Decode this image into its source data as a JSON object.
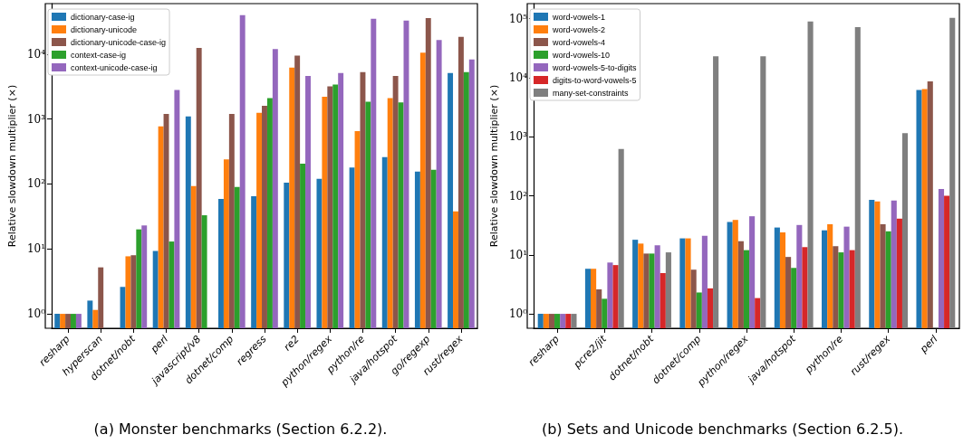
{
  "chart_data": [
    {
      "type": "bar",
      "title": "(a) Monster benchmarks (Section 6.2.2).",
      "ylabel": "Relative slowdown multiplier (×)",
      "log": "y",
      "grid": false,
      "legend": "top left",
      "ylim": [
        0.6,
        60000
      ],
      "yticks": [
        {
          "value": 1,
          "label": "10⁰"
        },
        {
          "value": 10,
          "label": "10¹"
        },
        {
          "value": 100,
          "label": "10²"
        },
        {
          "value": 1000,
          "label": "10³"
        },
        {
          "value": 10000,
          "label": "10⁴"
        }
      ],
      "categories": [
        "resharp",
        "hyperscan",
        "dotnet/nobt",
        "perl",
        "javascript/v8",
        "dotnet/comp",
        "regress",
        "re2",
        "python/regex",
        "python/re",
        "java/hotspot",
        "go/regexp",
        "rust/regex"
      ],
      "series": [
        {
          "name": "dictionary-case-ig",
          "color": "#1f77b4",
          "values": [
            1,
            1.6,
            2.6,
            9.3,
            1100,
            59,
            65,
            105,
            120,
            180,
            260,
            155,
            5100
          ]
        },
        {
          "name": "dictionary-unicode",
          "color": "#ff7f0e",
          "values": [
            1,
            1.15,
            7.7,
            770,
            93,
            240,
            1250,
            6200,
            2200,
            650,
            2100,
            10500,
            38
          ]
        },
        {
          "name": "dictionary-unicode-case-ig",
          "color": "#8c564b",
          "values": [
            1,
            5.2,
            8,
            1200,
            12500,
            1200,
            1600,
            9500,
            3200,
            5300,
            4600,
            36000,
            18500
          ]
        },
        {
          "name": "context-case-ig",
          "color": "#2ca02c",
          "values": [
            1,
            null,
            20,
            13,
            33,
            90,
            2100,
            205,
            3400,
            1850,
            1800,
            165,
            5300
          ]
        },
        {
          "name": "context-unicode-case-ig",
          "color": "#9467bd",
          "values": [
            1,
            null,
            23,
            2800,
            null,
            40000,
            12000,
            4600,
            5100,
            35000,
            33000,
            16500,
            8300
          ]
        }
      ]
    },
    {
      "type": "bar",
      "title": "(b) Sets and Unicode benchmarks (Section 6.2.5).",
      "ylabel": "Relative slowdown multiplier (×)",
      "log": "y",
      "grid": false,
      "legend": "top left",
      "ylim": [
        0.57,
        180000
      ],
      "yticks": [
        {
          "value": 1,
          "label": "10⁰"
        },
        {
          "value": 10,
          "label": "10¹"
        },
        {
          "value": 100,
          "label": "10²"
        },
        {
          "value": 1000,
          "label": "10³"
        },
        {
          "value": 10000,
          "label": "10⁴"
        },
        {
          "value": 100000,
          "label": "10⁵"
        }
      ],
      "categories": [
        "resharp",
        "pcre2/jit",
        "dotnet/nobt",
        "dotnet/comp",
        "python/regex",
        "java/hotspot",
        "python/re",
        "rust/regex",
        "perl"
      ],
      "series": [
        {
          "name": "word-vowels-1",
          "color": "#1f77b4",
          "values": [
            1,
            5.8,
            18,
            19,
            36,
            29,
            26,
            85,
            6200
          ]
        },
        {
          "name": "word-vowels-2",
          "color": "#ff7f0e",
          "values": [
            1,
            5.8,
            15.5,
            19,
            39,
            24,
            33,
            80,
            6400
          ]
        },
        {
          "name": "word-vowels-4",
          "color": "#8c564b",
          "values": [
            1,
            2.6,
            10.5,
            5.6,
            17,
            9.2,
            14,
            33,
            8700
          ]
        },
        {
          "name": "word-vowels-10",
          "color": "#2ca02c",
          "values": [
            1,
            1.8,
            10.5,
            2.3,
            12,
            6,
            11,
            25,
            null
          ]
        },
        {
          "name": "word-vowels-5-to-digits",
          "color": "#9467bd",
          "values": [
            1,
            7.4,
            14.5,
            21,
            45,
            32,
            30,
            83,
            130
          ]
        },
        {
          "name": "digits-to-word-vowels-5",
          "color": "#d62728",
          "values": [
            1,
            6.7,
            4.9,
            2.7,
            1.85,
            13.5,
            12,
            41,
            100
          ]
        },
        {
          "name": "many-set-constraints",
          "color": "#7f7f7f",
          "values": [
            1,
            620,
            11,
            23000,
            23000,
            90000,
            72000,
            1150,
            103000
          ]
        }
      ]
    }
  ]
}
